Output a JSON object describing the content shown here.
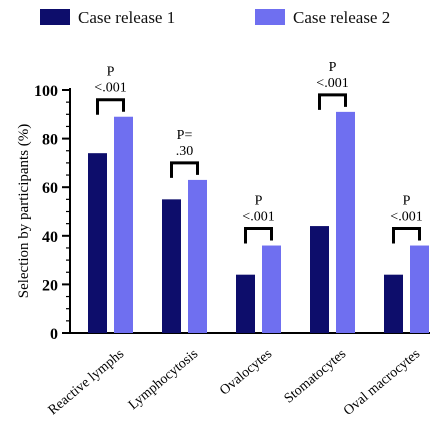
{
  "chart_data": {
    "type": "bar",
    "title": "",
    "xlabel": "",
    "ylabel": "Selection by participants (%)",
    "ylim": [
      0,
      100
    ],
    "yticks": [
      0,
      20,
      40,
      60,
      80,
      100
    ],
    "categories": [
      "Reactive lymphs",
      "Lymphocytosis",
      "Ovalocytes",
      "Stomatocytes",
      "Oval macrocytes"
    ],
    "series": [
      {
        "name": "Case release 1",
        "color": "#0d0d6b",
        "values": [
          74,
          55,
          24,
          44,
          24
        ]
      },
      {
        "name": "Case release 2",
        "color": "#6f6ff0",
        "values": [
          89,
          63,
          36,
          91,
          36
        ]
      }
    ],
    "annotations": [
      {
        "line1": "P",
        "line2": "<.001"
      },
      {
        "line1": "P=",
        "line2": ".30"
      },
      {
        "line1": "P",
        "line2": "<.001"
      },
      {
        "line1": "P",
        "line2": "<.001"
      },
      {
        "line1": "P",
        "line2": "<.001"
      }
    ],
    "legend_position": "top",
    "grid": false
  }
}
